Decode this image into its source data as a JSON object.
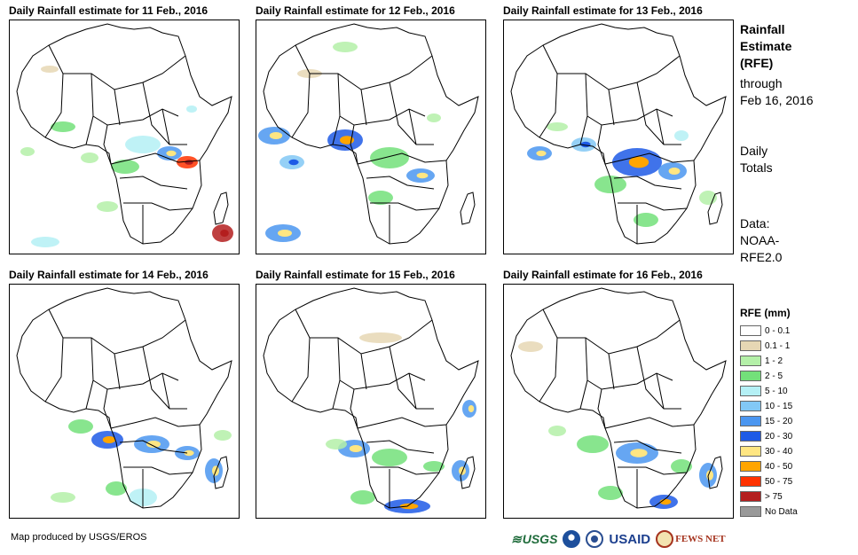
{
  "panels": [
    {
      "title": "Daily Rainfall estimate for 11 Feb., 2016"
    },
    {
      "title": "Daily Rainfall estimate for 12 Feb., 2016"
    },
    {
      "title": "Daily Rainfall estimate for 13 Feb., 2016"
    },
    {
      "title": "Daily Rainfall estimate for 14 Feb., 2016"
    },
    {
      "title": "Daily Rainfall estimate for 15 Feb., 2016"
    },
    {
      "title": "Daily Rainfall estimate for 16 Feb., 2016"
    }
  ],
  "side": {
    "heading": [
      "Rainfall",
      "Estimate",
      "(RFE)"
    ],
    "through": [
      "through",
      "Feb 16, 2016"
    ],
    "totals": [
      "Daily",
      "Totals"
    ],
    "data": [
      "Data:",
      "NOAA-",
      "RFE2.0"
    ]
  },
  "legend": {
    "title": "RFE (mm)",
    "items": [
      {
        "label": "0 - 0.1",
        "color": "#ffffff"
      },
      {
        "label": "0.1 - 1",
        "color": "#e6d7b4"
      },
      {
        "label": "1 - 2",
        "color": "#b4f0a8"
      },
      {
        "label": "2 - 5",
        "color": "#73e07a"
      },
      {
        "label": "5 - 10",
        "color": "#b4f0f5"
      },
      {
        "label": "10 - 15",
        "color": "#82c8f5"
      },
      {
        "label": "15 - 20",
        "color": "#4b96f0"
      },
      {
        "label": "20 - 30",
        "color": "#1e5ae6"
      },
      {
        "label": "30 - 40",
        "color": "#ffe682"
      },
      {
        "label": "40 - 50",
        "color": "#ffa500"
      },
      {
        "label": "50 - 75",
        "color": "#ff3200"
      },
      {
        "label": "> 75",
        "color": "#b41e1e"
      },
      {
        "label": "No Data",
        "color": "#999999"
      }
    ]
  },
  "footer": {
    "credit": "Map produced by USGS/EROS",
    "logos": {
      "usgs": "USGS",
      "usaid": "USAID",
      "fews": "FEWS NET"
    }
  }
}
